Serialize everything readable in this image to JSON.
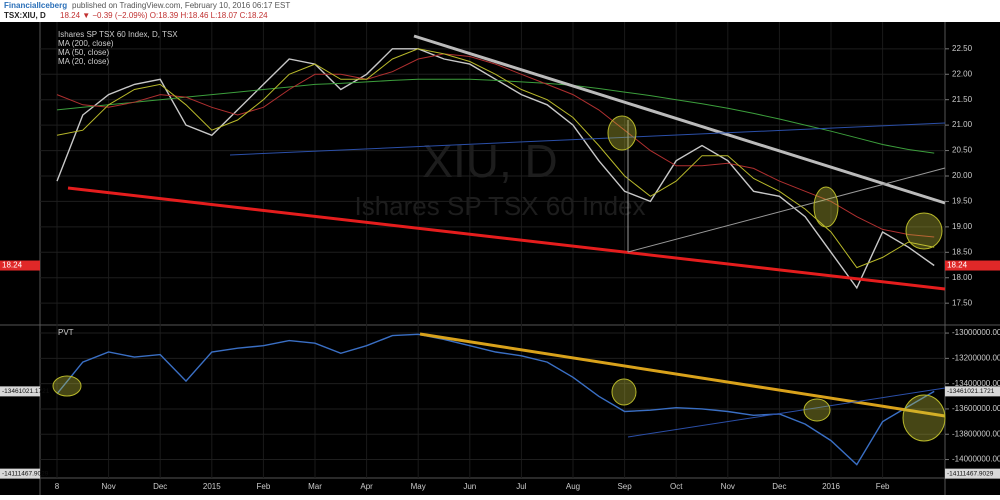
{
  "header": {
    "author": "FinancialIceberg",
    "text": "published on TradingView.com, February 10, 2016 06:17 EST",
    "symbol": "TSX:XIU, D",
    "quote": "18.24 ▼ −0.39 (−2.09%) O:18.39 H:18.46 L:18.07 C:18.24"
  },
  "chart_data": [
    {
      "type": "line",
      "title": "Ishares SP TSX 60 Index, D, TSX",
      "watermark": "XIU, D",
      "watermark_subtitle": "Ishares SP TSX 60 Index",
      "categories": [
        "8",
        null,
        "Nov",
        null,
        "Dec",
        null,
        "2015",
        null,
        "Feb",
        null,
        "Mar",
        null,
        "Apr",
        null,
        "May",
        null,
        "Jun",
        null,
        "Jul",
        null,
        "Aug",
        null,
        "Sep",
        null,
        "Oct",
        null,
        "Nov",
        null,
        "Dec",
        null,
        "2016",
        null,
        "Feb",
        null,
        null
      ],
      "series": [
        {
          "name": "Price",
          "color": "#c8c8c8",
          "values": [
            19.9,
            21.2,
            21.6,
            21.8,
            21.9,
            21.0,
            20.8,
            21.3,
            21.8,
            22.3,
            22.2,
            21.7,
            22.0,
            22.5,
            22.5,
            22.3,
            22.2,
            21.9,
            21.6,
            21.4,
            21.0,
            20.3,
            19.7,
            19.5,
            20.3,
            20.6,
            20.3,
            19.7,
            19.6,
            19.2,
            18.5,
            17.8,
            18.9,
            18.6,
            18.24
          ]
        },
        {
          "name": "MA (200, close)",
          "color": "#3c9e3c",
          "values": [
            21.3,
            21.35,
            21.4,
            21.45,
            21.5,
            21.55,
            21.6,
            21.65,
            21.7,
            21.75,
            21.8,
            21.82,
            21.85,
            21.88,
            21.9,
            21.9,
            21.9,
            21.88,
            21.85,
            21.82,
            21.78,
            21.72,
            21.65,
            21.58,
            21.5,
            21.42,
            21.33,
            21.23,
            21.12,
            21.0,
            20.88,
            20.75,
            20.62,
            20.52,
            20.45
          ]
        },
        {
          "name": "MA (50, close)",
          "color": "#b03030",
          "values": [
            21.6,
            21.4,
            21.35,
            21.45,
            21.6,
            21.55,
            21.35,
            21.2,
            21.35,
            21.7,
            22.0,
            22.0,
            21.9,
            22.05,
            22.3,
            22.4,
            22.35,
            22.2,
            22.0,
            21.8,
            21.6,
            21.3,
            20.9,
            20.5,
            20.2,
            20.2,
            20.25,
            20.15,
            19.9,
            19.7,
            19.5,
            19.2,
            18.95,
            18.85,
            18.8
          ]
        },
        {
          "name": "MA (20, close)",
          "color": "#b8b82a",
          "values": [
            20.8,
            20.9,
            21.4,
            21.7,
            21.8,
            21.4,
            20.9,
            21.1,
            21.5,
            22.0,
            22.2,
            21.9,
            21.9,
            22.3,
            22.5,
            22.4,
            22.25,
            22.0,
            21.7,
            21.5,
            21.15,
            20.6,
            20.0,
            19.6,
            19.9,
            20.4,
            20.4,
            19.95,
            19.7,
            19.35,
            18.9,
            18.2,
            18.4,
            18.7,
            18.6
          ]
        }
      ],
      "ylim": [
        17.13,
        22.87
      ],
      "yticks": [
        {
          "value": 17.5,
          "label": "17.50"
        },
        {
          "value": 18,
          "label": "18.00"
        },
        {
          "value": 18.5,
          "label": "18.50"
        },
        {
          "value": 19,
          "label": "19.00"
        },
        {
          "value": 19.5,
          "label": "19.50"
        },
        {
          "value": 20,
          "label": "20.00"
        },
        {
          "value": 20.5,
          "label": "20.50"
        },
        {
          "value": 21,
          "label": "21.00"
        },
        {
          "value": 21.5,
          "label": "21.50"
        },
        {
          "value": 22,
          "label": "22.00"
        },
        {
          "value": 22.5,
          "label": "22.50"
        }
      ],
      "markers": [
        {
          "value": 18.24,
          "label": "18.24",
          "color": "#e02828"
        }
      ],
      "grid": true
    },
    {
      "type": "line",
      "title": "PVT",
      "series": [
        {
          "name": "PVT",
          "color": "#3a6fc4",
          "values": [
            -13480000,
            -13230000,
            -13150000,
            -13190000,
            -13170000,
            -13380000,
            -13150000,
            -13120000,
            -13100000,
            -13060000,
            -13080000,
            -13160000,
            -13100000,
            -13020000,
            -13010000,
            -13050000,
            -13100000,
            -13150000,
            -13180000,
            -13230000,
            -13350000,
            -13500000,
            -13620000,
            -13610000,
            -13590000,
            -13600000,
            -13620000,
            -13650000,
            -13640000,
            -13720000,
            -13850000,
            -14040000,
            -13700000,
            -13580000,
            -13461021.1721
          ]
        }
      ],
      "ylim": [
        -14146000,
        -12960000
      ],
      "yticks": [
        {
          "value": -13000000,
          "label": "-13000000.0000"
        },
        {
          "value": -13200000,
          "label": "-13200000.0000"
        },
        {
          "value": -13400000,
          "label": "-13400000.0000"
        },
        {
          "value": -13600000,
          "label": "-13600000.0000"
        },
        {
          "value": -13800000,
          "label": "-13800000.0000"
        },
        {
          "value": -14000000,
          "label": "-14000000.0000"
        }
      ],
      "markers": [
        {
          "value": -13461021.1721,
          "label": "-13461021.1721",
          "color": "#d8d8d8"
        },
        {
          "value": -14111467.9029,
          "label": "-14111467.9029",
          "color": "#d8d8d8"
        }
      ],
      "grid": true
    }
  ]
}
